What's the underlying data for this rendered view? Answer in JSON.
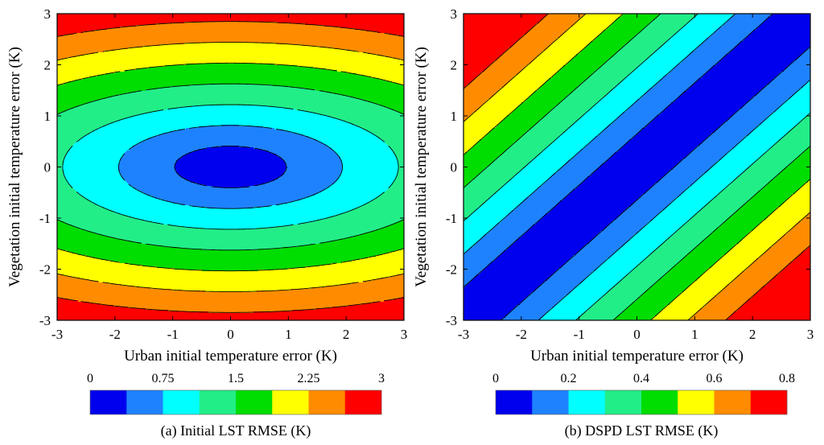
{
  "chart_data": [
    {
      "type": "contour",
      "title": "(a) Initial LST RMSE (K)",
      "xlabel": "Urban initial temperature error (K)",
      "ylabel": "Vegetation initial temperature error (K)",
      "xlim": [
        -3,
        3
      ],
      "ylim": [
        -3,
        3
      ],
      "xticks": [
        "-3",
        "-2",
        "-1",
        "0",
        "1",
        "2",
        "3"
      ],
      "yticks": [
        "-3",
        "-2",
        "-1",
        "0",
        "1",
        "2",
        "3"
      ],
      "function": "RMSE = sqrt(0.85*veg^2 + 0.15*urban^2)",
      "levels": [
        0,
        0.375,
        0.75,
        1.125,
        1.5,
        1.875,
        2.25,
        2.625,
        3
      ],
      "colorbar": {
        "ticks": [
          "0",
          "0.75",
          "1.5",
          "2.25",
          "3"
        ],
        "colors": [
          "#0000ee",
          "#1e82ff",
          "#00ffff",
          "#22ee88",
          "#00dd00",
          "#ffff00",
          "#ff8c00",
          "#ff0000"
        ]
      }
    },
    {
      "type": "contour",
      "title": "(b) DSPD LST RMSE (K)",
      "xlabel": "Urban initial temperature error (K)",
      "ylabel": "Vegetation initial temperature error (K)",
      "xlim": [
        -3,
        3
      ],
      "ylim": [
        -3,
        3
      ],
      "xticks": [
        "-3",
        "-2",
        "-1",
        "0",
        "1",
        "2",
        "3"
      ],
      "yticks": [
        "-3",
        "-2",
        "-1",
        "0",
        "1",
        "2",
        "3"
      ],
      "function": "RMSE = 0.1545 * |urban - veg|",
      "levels": [
        0,
        0.1,
        0.2,
        0.3,
        0.4,
        0.5,
        0.6,
        0.7,
        0.8
      ],
      "colorbar": {
        "ticks": [
          "0",
          "0.2",
          "0.4",
          "0.6",
          "0.8"
        ],
        "colors": [
          "#0000ee",
          "#1e82ff",
          "#00ffff",
          "#22ee88",
          "#00dd00",
          "#ffff00",
          "#ff8c00",
          "#ff0000"
        ]
      }
    }
  ]
}
